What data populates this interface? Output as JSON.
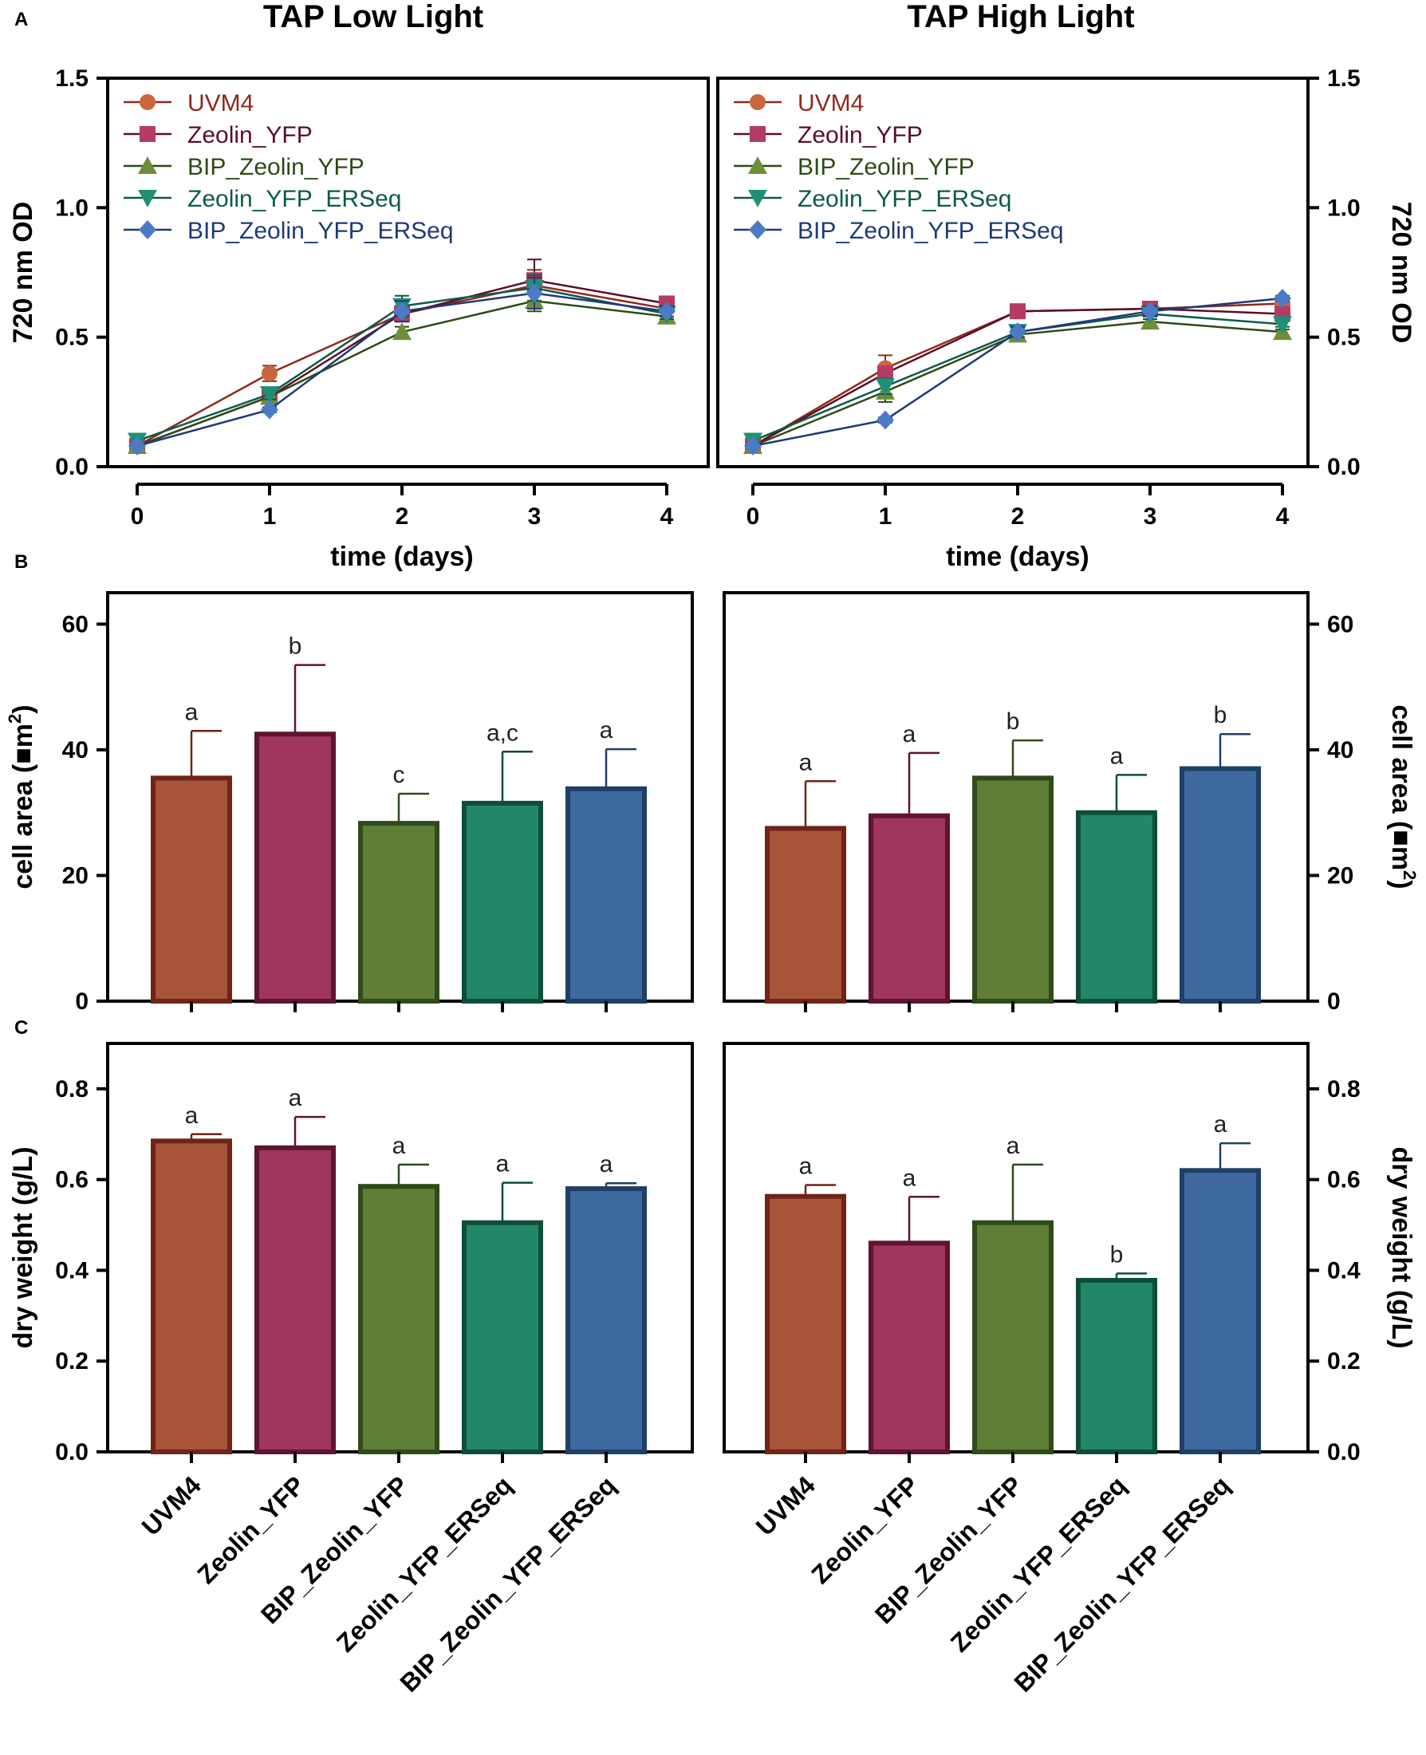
{
  "figure": {
    "panel_labels": [
      "A",
      "B",
      "C"
    ],
    "column_titles": [
      "TAP Low Light",
      "TAP High Light"
    ]
  },
  "strains": [
    "UVM4",
    "Zeolin_YFP",
    "BIP_Zeolin_YFP",
    "Zeolin_YFP_ERSeq",
    "BIP_Zeolin_YFP_ERSeq"
  ],
  "colors": {
    "UVM4": "#A8543A",
    "Zeolin_YFP": "#A0365E",
    "BIP_Zeolin_YFP": "#5E7F35",
    "Zeolin_YFP_ERSeq": "#228769",
    "BIP_Zeolin_YFP_ERSeq": "#3E6AA0",
    "UVM4_edge": "#6E2417",
    "Zeolin_YFP_edge": "#5E1433",
    "BIP_Zeolin_YFP_edge": "#2F4A1A",
    "Zeolin_YFP_ERSeq_edge": "#0F4D3A",
    "BIP_Zeolin_YFP_ERSeq_edge": "#203F66",
    "UVM4_marker": "#C8673E",
    "Zeolin_YFP_marker": "#B53B66",
    "BIP_Zeolin_YFP_marker": "#6E8E3A",
    "Zeolin_YFP_ERSeq_marker": "#1F9074",
    "BIP_Zeolin_YFP_ERSeq_marker": "#4A7BC4",
    "UVM4_line": "#8E2A1C",
    "Zeolin_YFP_line": "#5A0F25",
    "BIP_Zeolin_YFP_line": "#2E4A16",
    "Zeolin_YFP_ERSeq_line": "#0E5A48",
    "BIP_Zeolin_YFP_ERSeq_line": "#1F3A78",
    "UVM4_text": "#8E2A1C",
    "Zeolin_YFP_text": "#5A0F25",
    "BIP_Zeolin_YFP_text": "#2E4A16",
    "Zeolin_YFP_ERSeq_text": "#0E5A48",
    "BIP_Zeolin_YFP_ERSeq_text": "#1F3A78"
  },
  "chart_data": [
    {
      "id": "A-low",
      "panel": "A",
      "type": "line",
      "title": "TAP Low Light",
      "xlabel": "time (days)",
      "ylabel": "720 nm OD",
      "x": [
        0,
        1,
        2,
        3,
        4
      ],
      "xticks": [
        "0",
        "1",
        "2",
        "3",
        "4"
      ],
      "ylim": [
        0,
        1.5
      ],
      "yticks": [
        "0.0",
        "0.5",
        "1.0",
        "1.5"
      ],
      "yaxis_side": "left",
      "legend": true,
      "legend_location": "top-left",
      "series": [
        {
          "name": "UVM4",
          "marker": "circle",
          "values": [
            0.08,
            0.36,
            0.59,
            0.7,
            0.61
          ],
          "err": [
            0,
            0.03,
            0.03,
            0.06,
            0.04
          ]
        },
        {
          "name": "Zeolin_YFP",
          "marker": "square",
          "values": [
            0.08,
            0.27,
            0.59,
            0.72,
            0.63
          ],
          "err": [
            0,
            0.02,
            0.03,
            0.08,
            0.02
          ]
        },
        {
          "name": "BIP_Zeolin_YFP",
          "marker": "triangle-up",
          "values": [
            0.08,
            0.27,
            0.52,
            0.64,
            0.58
          ],
          "err": [
            0,
            0.02,
            0.02,
            0.04,
            0.02
          ]
        },
        {
          "name": "Zeolin_YFP_ERSeq",
          "marker": "triangle-down",
          "values": [
            0.1,
            0.28,
            0.62,
            0.69,
            0.59
          ],
          "err": [
            0,
            0.02,
            0.04,
            0.05,
            0.02
          ]
        },
        {
          "name": "BIP_Zeolin_YFP_ERSeq",
          "marker": "diamond",
          "values": [
            0.08,
            0.22,
            0.6,
            0.67,
            0.6
          ],
          "err": [
            0,
            0.01,
            0.04,
            0.06,
            0.02
          ]
        }
      ]
    },
    {
      "id": "A-high",
      "panel": "A",
      "type": "line",
      "title": "TAP High Light",
      "xlabel": "time (days)",
      "ylabel": "720 nm OD",
      "x": [
        0,
        1,
        2,
        3,
        4
      ],
      "xticks": [
        "0",
        "1",
        "2",
        "3",
        "4"
      ],
      "ylim": [
        0,
        1.5
      ],
      "yticks": [
        "0.0",
        "0.5",
        "1.0",
        "1.5"
      ],
      "yaxis_side": "right",
      "legend": true,
      "legend_location": "top-left",
      "series": [
        {
          "name": "UVM4",
          "marker": "circle",
          "values": [
            0.08,
            0.38,
            0.6,
            0.61,
            0.63
          ],
          "err": [
            0,
            0.05,
            0.02,
            0.01,
            0.02
          ]
        },
        {
          "name": "Zeolin_YFP",
          "marker": "square",
          "values": [
            0.08,
            0.36,
            0.6,
            0.61,
            0.59
          ],
          "err": [
            0,
            0.02,
            0.01,
            0.01,
            0.02
          ]
        },
        {
          "name": "BIP_Zeolin_YFP",
          "marker": "triangle-up",
          "values": [
            0.08,
            0.29,
            0.51,
            0.56,
            0.52
          ],
          "err": [
            0,
            0.04,
            0.02,
            0.02,
            0.02
          ]
        },
        {
          "name": "Zeolin_YFP_ERSeq",
          "marker": "triangle-down",
          "values": [
            0.1,
            0.31,
            0.52,
            0.59,
            0.55
          ],
          "err": [
            0,
            0.03,
            0.02,
            0.02,
            0.02
          ]
        },
        {
          "name": "BIP_Zeolin_YFP_ERSeq",
          "marker": "diamond",
          "values": [
            0.08,
            0.18,
            0.52,
            0.6,
            0.65
          ],
          "err": [
            0,
            0.01,
            0.02,
            0.02,
            0.01
          ]
        }
      ]
    },
    {
      "id": "B-low",
      "panel": "B",
      "type": "bar",
      "ylabel_prefix": "cell area (",
      "ylabel_unit": "m",
      "ylabel_sup": "2",
      "ylabel_suffix": ")",
      "ylim": [
        0,
        65
      ],
      "yticks": [
        "0",
        "20",
        "40",
        "60"
      ],
      "yaxis_side": "left",
      "categories": [
        "UVM4",
        "Zeolin_YFP",
        "BIP_Zeolin_YFP",
        "Zeolin_YFP_ERSeq",
        "BIP_Zeolin_YFP_ERSeq"
      ],
      "values": [
        35.5,
        42.5,
        28.3,
        31.5,
        33.8
      ],
      "errors": [
        7.5,
        11.0,
        4.7,
        8.2,
        6.3
      ],
      "letters": [
        "a",
        "b",
        "c",
        "a,c",
        "a"
      ]
    },
    {
      "id": "B-high",
      "panel": "B",
      "type": "bar",
      "ylabel_prefix": "cell area (",
      "ylabel_unit": "m",
      "ylabel_sup": "2",
      "ylabel_suffix": ")",
      "ylim": [
        0,
        65
      ],
      "yticks": [
        "0",
        "20",
        "40",
        "60"
      ],
      "yaxis_side": "right",
      "categories": [
        "UVM4",
        "Zeolin_YFP",
        "BIP_Zeolin_YFP",
        "Zeolin_YFP_ERSeq",
        "BIP_Zeolin_YFP_ERSeq"
      ],
      "values": [
        27.5,
        29.5,
        35.5,
        30.0,
        37.0
      ],
      "errors": [
        7.5,
        10.0,
        6.0,
        6.0,
        5.5
      ],
      "letters": [
        "a",
        "a",
        "b",
        "a",
        "b"
      ]
    },
    {
      "id": "C-low",
      "panel": "C",
      "type": "bar",
      "ylabel": "dry weight (g/L)",
      "ylim": [
        0,
        0.9
      ],
      "yticks": [
        "0.0",
        "0.2",
        "0.4",
        "0.6",
        "0.8"
      ],
      "yaxis_side": "left",
      "categories": [
        "UVM4",
        "Zeolin_YFP",
        "BIP_Zeolin_YFP",
        "Zeolin_YFP_ERSeq",
        "BIP_Zeolin_YFP_ERSeq"
      ],
      "values": [
        0.685,
        0.67,
        0.585,
        0.505,
        0.58
      ],
      "errors": [
        0.015,
        0.068,
        0.048,
        0.088,
        0.012
      ],
      "letters": [
        "a",
        "a",
        "a",
        "a",
        "a"
      ]
    },
    {
      "id": "C-high",
      "panel": "C",
      "type": "bar",
      "ylabel": "dry weight (g/L)",
      "ylim": [
        0,
        0.9
      ],
      "yticks": [
        "0.0",
        "0.2",
        "0.4",
        "0.6",
        "0.8"
      ],
      "yaxis_side": "right",
      "categories": [
        "UVM4",
        "Zeolin_YFP",
        "BIP_Zeolin_YFP",
        "Zeolin_YFP_ERSeq",
        "BIP_Zeolin_YFP_ERSeq"
      ],
      "values": [
        0.563,
        0.46,
        0.505,
        0.378,
        0.62
      ],
      "errors": [
        0.025,
        0.102,
        0.128,
        0.015,
        0.06
      ],
      "letters": [
        "a",
        "a",
        "a",
        "b",
        "a"
      ]
    }
  ]
}
